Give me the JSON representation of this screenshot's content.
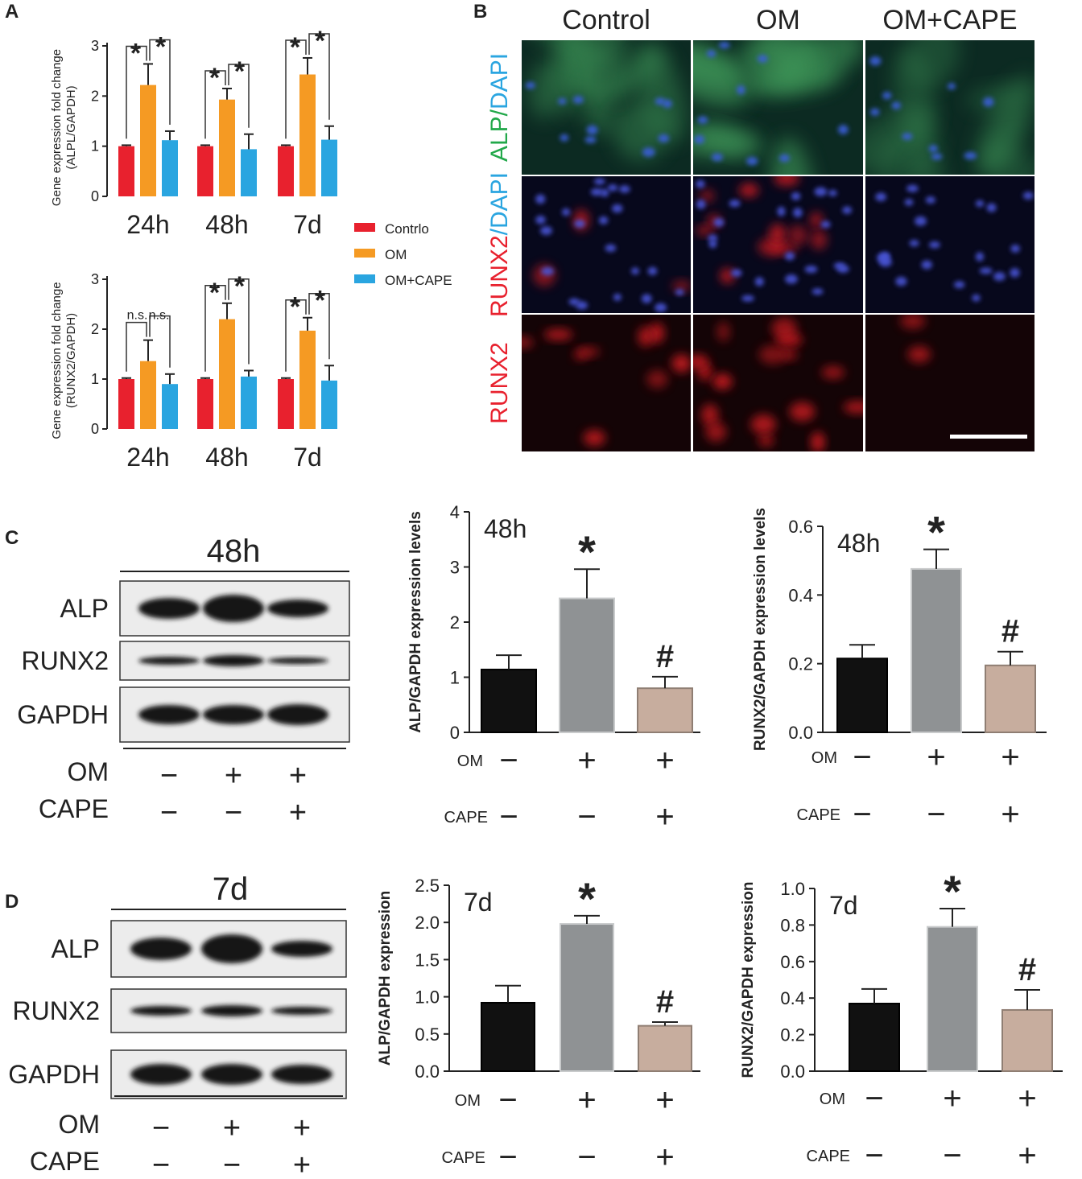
{
  "panels": {
    "A": "A",
    "B": "B",
    "C": "C",
    "D": "D"
  },
  "colors": {
    "control": "#e8212e",
    "om": "#f59a23",
    "om_cape": "#2aa5e0",
    "bar_black": "#111111",
    "bar_gray": "#8f9294",
    "bar_tan": "#c7ad9e"
  },
  "legend": {
    "items": [
      {
        "label": "Contrlo",
        "color": "#e8212e"
      },
      {
        "label": "OM",
        "color": "#f59a23"
      },
      {
        "label": "OM+CAPE",
        "color": "#2aa5e0"
      }
    ]
  },
  "micrograph": {
    "columns": [
      "Control",
      "OM",
      "OM+CAPE"
    ],
    "rows": [
      {
        "parts": [
          {
            "text": "ALP",
            "color": "#22a84a"
          },
          {
            "text": "/",
            "color": "#22a84a"
          },
          {
            "text": "DAPI",
            "color": "#2aa5e0"
          }
        ],
        "bg": "#0c2a22",
        "cell": "#3a5fd8",
        "stain": "green"
      },
      {
        "parts": [
          {
            "text": "RUNX2",
            "color": "#e8212e"
          },
          {
            "text": "/",
            "color": "#2aa5e0"
          },
          {
            "text": "DAPI",
            "color": "#2aa5e0"
          }
        ],
        "bg": "#07081c",
        "cell": "#4a55d6",
        "stain": "redblue"
      },
      {
        "parts": [
          {
            "text": "RUNX2",
            "color": "#e8212e"
          }
        ],
        "bg": "#140406",
        "cell": "#7a1414",
        "stain": "red"
      }
    ]
  },
  "blots": [
    {
      "time": "48h",
      "rows": [
        "ALP",
        "RUNX2",
        "GAPDH"
      ],
      "treat": [
        {
          "label": "OM",
          "signs": [
            "−",
            "+",
            "+"
          ]
        },
        {
          "label": "CAPE",
          "signs": [
            "−",
            "−",
            "+"
          ]
        }
      ]
    },
    {
      "time": "7d",
      "rows": [
        "ALP",
        "RUNX2",
        "GAPDH"
      ],
      "treat": [
        {
          "label": "OM",
          "signs": [
            "−",
            "+",
            "+"
          ]
        },
        {
          "label": "CAPE",
          "signs": [
            "−",
            "−",
            "+"
          ]
        }
      ]
    }
  ],
  "chart_data": [
    {
      "id": "alpl-qpcr",
      "type": "bar",
      "ylabel": "Gene expression fold change\n(ALPL/GAPDH)",
      "ylim": [
        0,
        3
      ],
      "yticks": [
        0,
        1,
        2,
        3
      ],
      "categories": [
        "24h",
        "48h",
        "7d"
      ],
      "series": [
        {
          "name": "Contrlo",
          "color": "#e8212e",
          "values": [
            1.0,
            1.0,
            1.0
          ],
          "err": [
            0.02,
            0.02,
            0.02
          ]
        },
        {
          "name": "OM",
          "color": "#f59a23",
          "values": [
            2.22,
            1.93,
            2.43
          ],
          "err": [
            0.42,
            0.22,
            0.33
          ]
        },
        {
          "name": "OM+CAPE",
          "color": "#2aa5e0",
          "values": [
            1.12,
            0.94,
            1.13
          ],
          "err": [
            0.18,
            0.3,
            0.27
          ]
        }
      ],
      "annotations": [
        [
          "*",
          "*"
        ],
        [
          "*",
          "*"
        ],
        [
          "*",
          "*"
        ]
      ]
    },
    {
      "id": "runx2-qpcr",
      "type": "bar",
      "ylabel": "Gene expression fold change\n(RUNX2/GAPDH)",
      "ylim": [
        0,
        3
      ],
      "yticks": [
        0,
        1,
        2,
        3
      ],
      "categories": [
        "24h",
        "48h",
        "7d"
      ],
      "series": [
        {
          "name": "Contrlo",
          "color": "#e8212e",
          "values": [
            1.0,
            1.0,
            1.0
          ],
          "err": [
            0.02,
            0.02,
            0.02
          ]
        },
        {
          "name": "OM",
          "color": "#f59a23",
          "values": [
            1.36,
            2.2,
            1.97
          ],
          "err": [
            0.42,
            0.32,
            0.26
          ]
        },
        {
          "name": "OM+CAPE",
          "color": "#2aa5e0",
          "values": [
            0.9,
            1.05,
            0.97
          ],
          "err": [
            0.2,
            0.12,
            0.3
          ]
        }
      ],
      "annotations": [
        [
          "n.s.",
          "n.s."
        ],
        [
          "*",
          "*"
        ],
        [
          "*",
          "*"
        ]
      ]
    },
    {
      "id": "alp-48h",
      "type": "bar",
      "title": "48h",
      "ylabel": "ALP/GAPDH expression levels",
      "ylim": [
        0,
        4
      ],
      "yticks": [
        "0",
        "1",
        "2",
        "3",
        "4"
      ],
      "values": [
        1.14,
        2.43,
        0.8
      ],
      "err": [
        0.26,
        0.53,
        0.21
      ],
      "colors": [
        "#111111",
        "#8f9294",
        "#c7ad9e"
      ],
      "marks": [
        "",
        "*",
        "#"
      ],
      "om": [
        "−",
        "+",
        "+"
      ],
      "cape": [
        "−",
        "−",
        "+"
      ],
      "om_label": "OM",
      "cape_label": "CAPE"
    },
    {
      "id": "runx2-48h",
      "type": "bar",
      "title": "48h",
      "ylabel": "RUNX2/GAPDH expression levels",
      "ylim": [
        0,
        0.6
      ],
      "yticks": [
        "0.0",
        "0.2",
        "0.4",
        "0.6"
      ],
      "values": [
        0.215,
        0.476,
        0.195
      ],
      "err": [
        0.04,
        0.057,
        0.04
      ],
      "colors": [
        "#111111",
        "#8f9294",
        "#c7ad9e"
      ],
      "marks": [
        "",
        "*",
        "#"
      ],
      "om": [
        "−",
        "+",
        "+"
      ],
      "cape": [
        "−",
        "−",
        "+"
      ],
      "om_label": "OM",
      "cape_label": "CAPE"
    },
    {
      "id": "alp-7d",
      "type": "bar",
      "title": "7d",
      "ylabel": "ALP/GAPDH expression",
      "ylim": [
        0,
        2.5
      ],
      "yticks": [
        "0.0",
        "0.5",
        "1.0",
        "1.5",
        "2.0",
        "2.5"
      ],
      "values": [
        0.92,
        1.98,
        0.61
      ],
      "err": [
        0.23,
        0.11,
        0.05
      ],
      "colors": [
        "#111111",
        "#8f9294",
        "#c7ad9e"
      ],
      "marks": [
        "",
        "*",
        "#"
      ],
      "om": [
        "−",
        "+",
        "+"
      ],
      "cape": [
        "−",
        "−",
        "+"
      ],
      "om_label": "OM",
      "cape_label": "CAPE"
    },
    {
      "id": "runx2-7d",
      "type": "bar",
      "title": "7d",
      "ylabel": "RUNX2/GAPDH expression",
      "ylim": [
        0,
        1.0
      ],
      "yticks": [
        "0.0",
        "0.2",
        "0.4",
        "0.6",
        "0.8",
        "1.0"
      ],
      "values": [
        0.37,
        0.79,
        0.335
      ],
      "err": [
        0.08,
        0.1,
        0.11
      ],
      "colors": [
        "#111111",
        "#8f9294",
        "#c7ad9e"
      ],
      "marks": [
        "",
        "*",
        "#"
      ],
      "om": [
        "−",
        "+",
        "+"
      ],
      "cape": [
        "−",
        "−",
        "+"
      ],
      "om_label": "OM",
      "cape_label": "CAPE"
    }
  ]
}
